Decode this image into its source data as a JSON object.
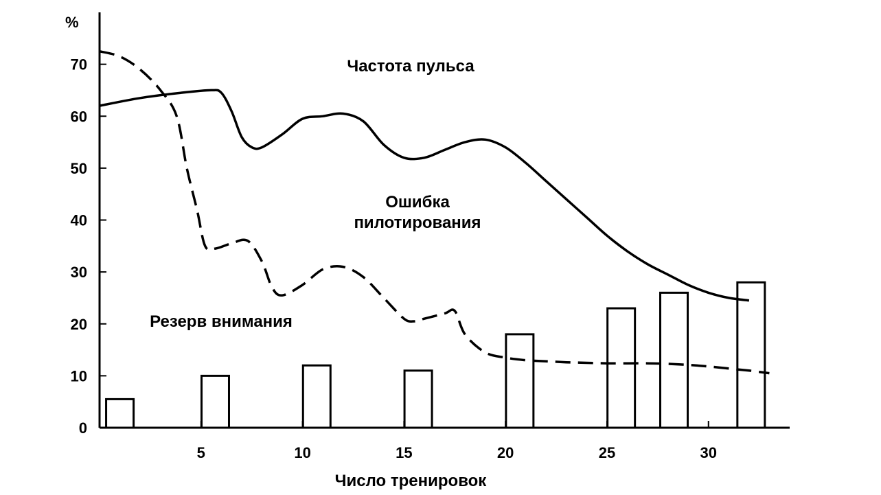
{
  "chart_data": {
    "type": "line",
    "y_unit_label": "%",
    "xlabel": "Число тренировок",
    "xlim": [
      0,
      34
    ],
    "ylim": [
      0,
      80
    ],
    "x_ticks": [
      5,
      10,
      15,
      20,
      25,
      30
    ],
    "y_ticks": [
      0,
      10,
      20,
      30,
      40,
      50,
      60,
      70
    ],
    "grid": false,
    "legend": "none",
    "series": [
      {
        "name": "Частота пульса",
        "style": "solid",
        "x": [
          0,
          2,
          4,
          5.5,
          6,
          6.5,
          7,
          7.5,
          8,
          9,
          10,
          11,
          12,
          13,
          14,
          15,
          16,
          17,
          18,
          19,
          20,
          21,
          22,
          23,
          24,
          25,
          26,
          27,
          28,
          29,
          30,
          31,
          32
        ],
        "y": [
          62,
          63.5,
          64.5,
          65,
          64.5,
          61,
          56,
          54,
          54,
          56.5,
          59.5,
          60,
          60.5,
          59,
          54.5,
          52,
          52,
          53.5,
          55,
          55.5,
          54,
          51,
          47.5,
          44,
          40.5,
          37,
          34,
          31.5,
          29.5,
          27.5,
          26,
          25,
          24.5
        ]
      },
      {
        "name": "Ошибка пилотирования",
        "style": "dashed",
        "x": [
          0,
          1,
          2,
          3,
          3.8,
          4.3,
          4.8,
          5.2,
          5.7,
          6.5,
          7.3,
          8,
          8.5,
          9,
          10,
          11,
          12,
          13,
          14,
          15,
          15.5,
          16,
          17,
          17.5,
          18,
          19,
          20,
          21,
          22,
          23,
          24,
          25,
          26,
          27,
          28,
          29,
          30,
          31,
          32,
          33
        ],
        "y": [
          72.5,
          71.5,
          69,
          65,
          60,
          50,
          42,
          35,
          34.5,
          35.5,
          36,
          32,
          27,
          25.5,
          27.5,
          30.5,
          31,
          29,
          25,
          21,
          20.5,
          21,
          22,
          22.5,
          18,
          14.5,
          13.5,
          13,
          12.8,
          12.6,
          12.5,
          12.4,
          12.4,
          12.4,
          12.3,
          12.1,
          11.8,
          11.4,
          11,
          10.5
        ]
      },
      {
        "name": "Резерв внимания",
        "style": "bar",
        "x": [
          1,
          5.7,
          10.7,
          15.7,
          20.7,
          25.7,
          28.3,
          32.1
        ],
        "y": [
          5.5,
          10,
          12,
          11,
          18,
          23,
          26,
          28
        ]
      }
    ]
  },
  "labels": {
    "heart_rate": "Частота пульса",
    "pilot_error_line1": "Ошибка",
    "pilot_error_line2": "пилотирования",
    "attention_reserve": "Резерв внимания"
  }
}
